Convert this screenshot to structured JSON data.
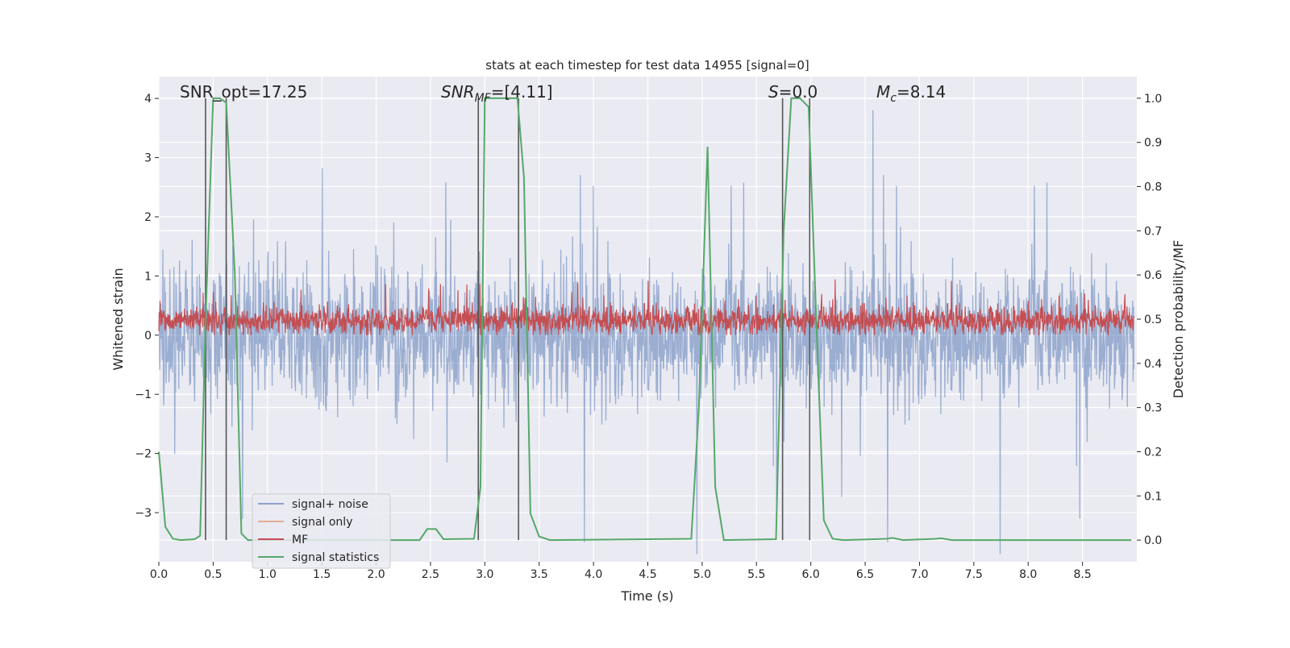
{
  "chart_data": {
    "type": "line",
    "title": "stats at each timestep for test data 14955 [signal=0]",
    "xlabel": "Time (s)",
    "ylabel": "Whitened strain",
    "y2label": "Detection probability/MF",
    "xlim": [
      0,
      9
    ],
    "ylim": [
      -3.83,
      4.37
    ],
    "y2lim": [
      -0.049,
      1.049
    ],
    "xticks": [
      "0.0",
      "0.5",
      "1.0",
      "1.5",
      "2.0",
      "2.5",
      "3.0",
      "3.5",
      "4.0",
      "4.5",
      "5.0",
      "5.5",
      "6.0",
      "6.5",
      "7.0",
      "7.5",
      "8.0",
      "8.5"
    ],
    "yticks": [
      "−3",
      "−2",
      "−1",
      "0",
      "1",
      "2",
      "3",
      "4"
    ],
    "y2ticks": [
      "0.0",
      "0.1",
      "0.2",
      "0.3",
      "0.4",
      "0.5",
      "0.6",
      "0.7",
      "0.8",
      "0.9",
      "1.0"
    ],
    "grid": true,
    "background": "#eaeaf2",
    "legend": {
      "placement": "lower-left",
      "entries": [
        {
          "label": "signal+ noise",
          "color": "#4c72b0"
        },
        {
          "label": "signal only",
          "color": "#dd8452"
        },
        {
          "label": "MF",
          "color": "#c44e52"
        },
        {
          "label": "signal statistics",
          "color": "#55a868"
        }
      ]
    },
    "annotations": {
      "snr_opt": "SNR_opt=17.25",
      "snr_mf_base": "SNR",
      "snr_mf_sub": "MF",
      "snr_mf_value": "=[4.11]",
      "s_base": "S",
      "s_value": "=0.0",
      "mc_base": "M",
      "mc_sub": "c",
      "mc_value": "=8.14"
    },
    "series": [
      {
        "name": "signal statistics",
        "axis": "right",
        "color": "#55a868",
        "x": [
          0,
          0.06,
          0.13,
          0.2,
          0.33,
          0.38,
          0.43,
          0.5,
          0.56,
          0.62,
          0.7,
          0.76,
          0.82,
          2.4,
          2.47,
          2.55,
          2.62,
          2.9,
          2.96,
          3.0,
          3.1,
          3.3,
          3.36,
          3.42,
          3.5,
          3.6,
          4.9,
          4.97,
          5.05,
          5.12,
          5.2,
          5.68,
          5.75,
          5.82,
          5.9,
          5.98,
          6.05,
          6.12,
          6.2,
          6.3,
          6.7,
          6.75,
          6.85,
          7.15,
          7.2,
          7.3,
          8.95
        ],
        "y": [
          0.2,
          0.03,
          0.003,
          0,
          0.002,
          0.01,
          0.5,
          1.0,
          1.0,
          0.99,
          0.6,
          0.015,
          0,
          0,
          0.025,
          0.025,
          0.002,
          0.003,
          0.12,
          1.0,
          1.0,
          1.0,
          0.82,
          0.06,
          0.008,
          0,
          0.003,
          0.3,
          0.89,
          0.12,
          0,
          0.002,
          0.7,
          1.0,
          1.0,
          0.98,
          0.5,
          0.045,
          0.003,
          0,
          0.003,
          0.005,
          0,
          0.003,
          0.004,
          0,
          0
        ]
      }
    ],
    "vertical_lines": {
      "axis": "right",
      "color": "#555555",
      "x": [
        0.43,
        0.62,
        2.94,
        3.31,
        5.74,
        5.99
      ],
      "ymin": 0,
      "ymax": 1.0
    },
    "mf_level": 0.25
  }
}
